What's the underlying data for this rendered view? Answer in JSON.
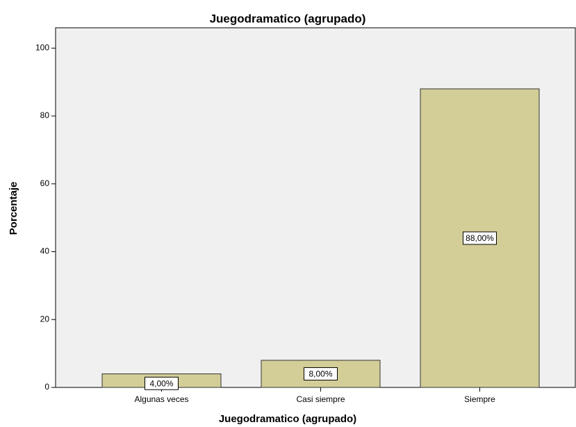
{
  "chart_data": {
    "type": "bar",
    "title": "Juegodramatico (agrupado)",
    "x_label": "Juegodramatico (agrupado)",
    "y_label": "Porcentaje",
    "categories": [
      "Algunas veces",
      "Casi siempre",
      "Siempre"
    ],
    "values": [
      4,
      8,
      88
    ],
    "value_labels": [
      "4,00%",
      "8,00%",
      "88,00%"
    ],
    "color": "#d3ce97",
    "ylim": [
      0,
      106
    ],
    "yticks": [
      0,
      20,
      40,
      60,
      80,
      100
    ],
    "grid": false
  }
}
